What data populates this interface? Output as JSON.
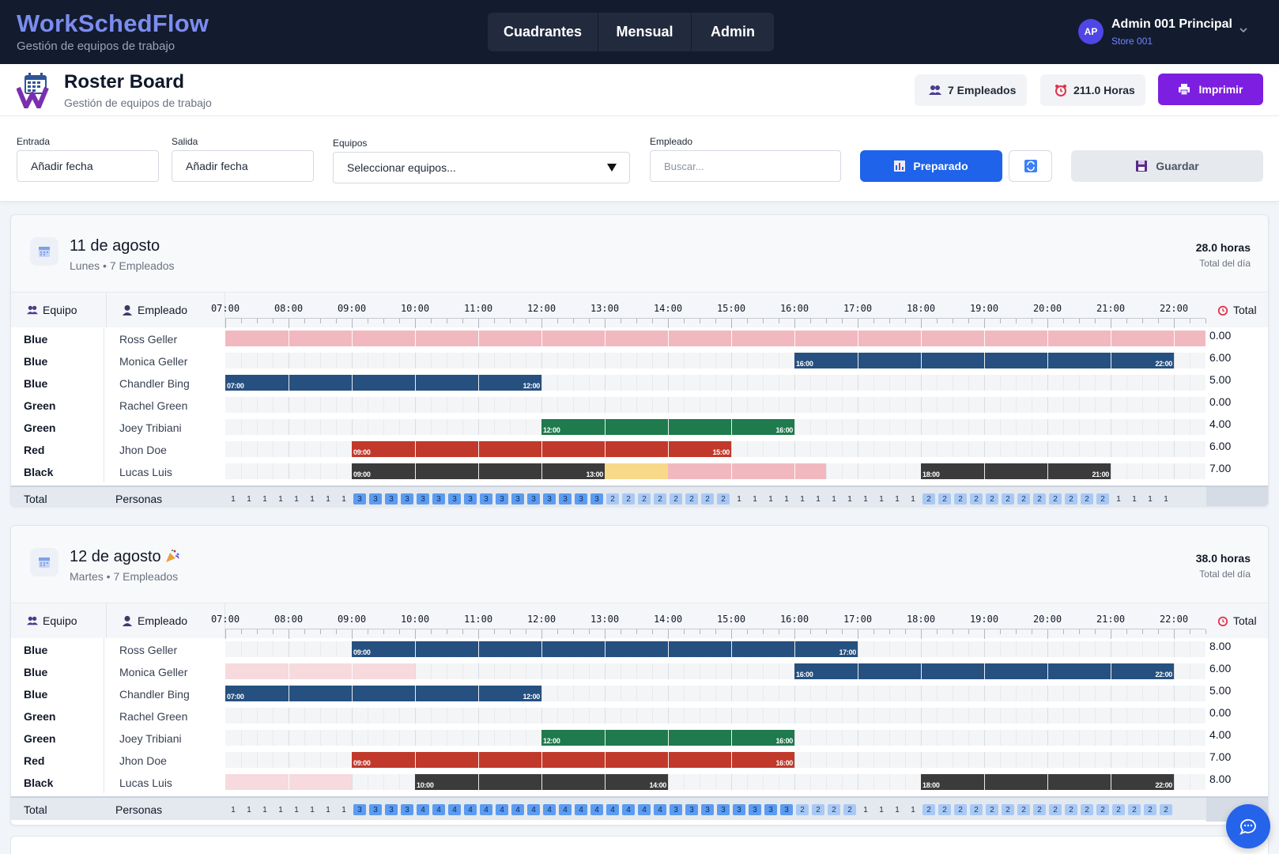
{
  "app": {
    "title": "WorkSchedFlow",
    "subtitle": "Gestión de equipos de trabajo"
  },
  "nav": {
    "items": [
      {
        "label": "Cuadrantes"
      },
      {
        "label": "Mensual"
      },
      {
        "label": "Admin"
      }
    ]
  },
  "user": {
    "initials": "AP",
    "name": "Admin 001 Principal",
    "store": "Store 001"
  },
  "page": {
    "title": "Roster Board",
    "subtitle": "Gestión de equipos de trabajo"
  },
  "stats": {
    "employees": "7 Empleados",
    "hours": "211.0 Horas"
  },
  "actions": {
    "print": "Imprimir",
    "prepared": "Preparado",
    "save": "Guardar"
  },
  "filters": {
    "entrada": {
      "label": "Entrada",
      "value": "Añadir fecha"
    },
    "salida": {
      "label": "Salida",
      "value": "Añadir fecha"
    },
    "equipos": {
      "label": "Equipos",
      "value": "Seleccionar equipos..."
    },
    "empleado": {
      "label": "Empleado",
      "placeholder": "Buscar..."
    }
  },
  "table_headers": {
    "team": "Equipo",
    "employee": "Empleado",
    "total": "Total",
    "foot_total": "Total",
    "foot_people": "Personas",
    "hours_sub": "Total del día"
  },
  "hours": [
    "07:00",
    "08:00",
    "09:00",
    "10:00",
    "11:00",
    "12:00",
    "13:00",
    "14:00",
    "15:00",
    "16:00",
    "17:00",
    "18:00",
    "19:00",
    "20:00",
    "21:00",
    "22:00"
  ],
  "team_colors": {
    "Blue": "#26507f",
    "Green": "#1f7a4d",
    "Red": "#c0392b",
    "Black": "#3b3b3b",
    "absence": "#f2b8bf",
    "absence_light": "#f6dadd",
    "break": "#f8d98a"
  },
  "days": [
    {
      "title": "11 de agosto",
      "party": false,
      "subtitle": "Lunes • 7 Empleados",
      "hours": "28.0 horas",
      "rows": [
        {
          "team": "Blue",
          "employee": "Ross Geller",
          "total": "0.00",
          "segments": [
            {
              "kind": "absence",
              "start": 7,
              "end": 22.5
            }
          ]
        },
        {
          "team": "Blue",
          "employee": "Monica Geller",
          "total": "6.00",
          "segments": [
            {
              "kind": "Blue",
              "start": 16,
              "end": 22,
              "from": "16:00",
              "to": "22:00"
            }
          ]
        },
        {
          "team": "Blue",
          "employee": "Chandler Bing",
          "total": "5.00",
          "segments": [
            {
              "kind": "Blue",
              "start": 7,
              "end": 12,
              "from": "07:00",
              "to": "12:00"
            }
          ]
        },
        {
          "team": "Green",
          "employee": "Rachel Green",
          "total": "0.00",
          "segments": []
        },
        {
          "team": "Green",
          "employee": "Joey Tribiani",
          "total": "4.00",
          "segments": [
            {
              "kind": "Green",
              "start": 12,
              "end": 16,
              "from": "12:00",
              "to": "16:00"
            }
          ]
        },
        {
          "team": "Red",
          "employee": "Jhon Doe",
          "total": "6.00",
          "segments": [
            {
              "kind": "Red",
              "start": 9,
              "end": 15,
              "from": "09:00",
              "to": "15:00"
            }
          ]
        },
        {
          "team": "Black",
          "employee": "Lucas Luis",
          "total": "7.00",
          "segments": [
            {
              "kind": "Black",
              "start": 9,
              "end": 13,
              "from": "09:00",
              "to": "13:00"
            },
            {
              "kind": "break",
              "start": 13,
              "end": 14
            },
            {
              "kind": "absence",
              "start": 14,
              "end": 16.5
            },
            {
              "kind": "Black",
              "start": 18,
              "end": 21,
              "from": "18:00",
              "to": "21:00"
            }
          ]
        }
      ],
      "counts": [
        1,
        1,
        1,
        1,
        1,
        1,
        1,
        1,
        3,
        3,
        3,
        3,
        3,
        3,
        3,
        3,
        3,
        3,
        3,
        3,
        3,
        3,
        3,
        3,
        2,
        2,
        2,
        2,
        2,
        2,
        2,
        2,
        1,
        1,
        1,
        1,
        1,
        1,
        1,
        1,
        1,
        1,
        1,
        1,
        2,
        2,
        2,
        2,
        2,
        2,
        2,
        2,
        2,
        2,
        2,
        2,
        1,
        1,
        1,
        1
      ]
    },
    {
      "title": "12 de agosto",
      "party": true,
      "subtitle": "Martes • 7 Empleados",
      "hours": "38.0 horas",
      "rows": [
        {
          "team": "Blue",
          "employee": "Ross Geller",
          "total": "8.00",
          "segments": [
            {
              "kind": "Blue",
              "start": 9,
              "end": 17,
              "from": "09:00",
              "to": "17:00"
            }
          ]
        },
        {
          "team": "Blue",
          "employee": "Monica Geller",
          "total": "6.00",
          "segments": [
            {
              "kind": "absence_light",
              "start": 7,
              "end": 10
            },
            {
              "kind": "Blue",
              "start": 16,
              "end": 22,
              "from": "16:00",
              "to": "22:00"
            }
          ]
        },
        {
          "team": "Blue",
          "employee": "Chandler Bing",
          "total": "5.00",
          "segments": [
            {
              "kind": "Blue",
              "start": 7,
              "end": 12,
              "from": "07:00",
              "to": "12:00"
            }
          ]
        },
        {
          "team": "Green",
          "employee": "Rachel Green",
          "total": "0.00",
          "segments": []
        },
        {
          "team": "Green",
          "employee": "Joey Tribiani",
          "total": "4.00",
          "segments": [
            {
              "kind": "Green",
              "start": 12,
              "end": 16,
              "from": "12:00",
              "to": "16:00"
            }
          ]
        },
        {
          "team": "Red",
          "employee": "Jhon Doe",
          "total": "7.00",
          "segments": [
            {
              "kind": "Red",
              "start": 9,
              "end": 16,
              "from": "09:00",
              "to": "16:00"
            }
          ]
        },
        {
          "team": "Black",
          "employee": "Lucas Luis",
          "total": "8.00",
          "segments": [
            {
              "kind": "absence_light",
              "start": 7,
              "end": 9
            },
            {
              "kind": "Black",
              "start": 10,
              "end": 14,
              "from": "10:00",
              "to": "14:00"
            },
            {
              "kind": "Black",
              "start": 18,
              "end": 22,
              "from": "18:00",
              "to": "22:00"
            }
          ]
        }
      ],
      "counts": [
        1,
        1,
        1,
        1,
        1,
        1,
        1,
        1,
        3,
        3,
        3,
        3,
        4,
        4,
        4,
        4,
        4,
        4,
        4,
        4,
        4,
        4,
        4,
        4,
        4,
        4,
        4,
        4,
        3,
        3,
        3,
        3,
        3,
        3,
        3,
        3,
        2,
        2,
        2,
        2,
        1,
        1,
        1,
        1,
        2,
        2,
        2,
        2,
        2,
        2,
        2,
        2,
        2,
        2,
        2,
        2,
        2,
        2,
        2,
        2
      ]
    }
  ]
}
